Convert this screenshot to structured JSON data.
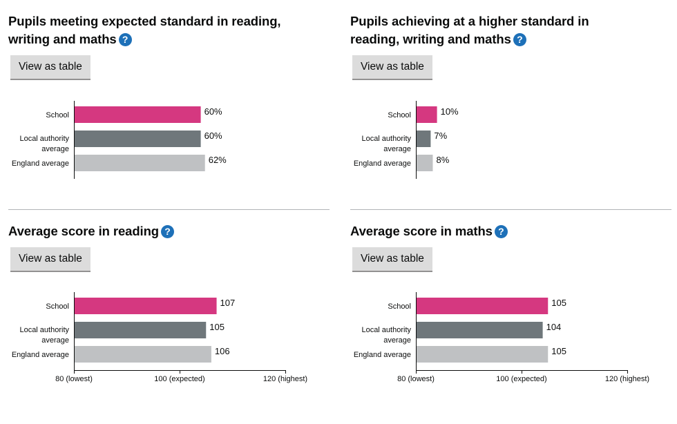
{
  "help_glyph": "?",
  "colors": {
    "school": "#d53880",
    "local_authority": "#6f777b",
    "england": "#bfc1c3",
    "help_icon": "#1d70b8",
    "axis": "#0b0c0c"
  },
  "panels": [
    {
      "title": "Pupils meeting expected standard in reading, writing and maths",
      "button_label": "View as table"
    },
    {
      "title": "Pupils achieving at a higher standard in reading, writing and maths",
      "button_label": "View as table"
    },
    {
      "title": "Average score in reading",
      "button_label": "View as table"
    },
    {
      "title": "Average score in maths",
      "button_label": "View as table"
    }
  ],
  "chart_data": [
    {
      "type": "bar",
      "orientation": "horizontal",
      "categories": [
        [
          "School"
        ],
        [
          "Local authority",
          "average"
        ],
        [
          "England average"
        ]
      ],
      "values": [
        60,
        60,
        62
      ],
      "value_labels": [
        "60%",
        "60%",
        "62%"
      ],
      "xlim": [
        0,
        100
      ],
      "ticks": []
    },
    {
      "type": "bar",
      "orientation": "horizontal",
      "categories": [
        [
          "School"
        ],
        [
          "Local authority",
          "average"
        ],
        [
          "England average"
        ]
      ],
      "values": [
        10,
        7,
        8
      ],
      "value_labels": [
        "10%",
        "7%",
        "8%"
      ],
      "xlim": [
        0,
        100
      ],
      "ticks": []
    },
    {
      "type": "bar",
      "orientation": "horizontal",
      "categories": [
        [
          "School"
        ],
        [
          "Local authority",
          "average"
        ],
        [
          "England average"
        ]
      ],
      "values": [
        107,
        105,
        106
      ],
      "value_labels": [
        "107",
        "105",
        "106"
      ],
      "xlim": [
        80,
        120
      ],
      "ticks": [
        {
          "value": 80,
          "label": "80 (lowest)"
        },
        {
          "value": 100,
          "label": "100 (expected)"
        },
        {
          "value": 120,
          "label": "120 (highest)"
        }
      ]
    },
    {
      "type": "bar",
      "orientation": "horizontal",
      "categories": [
        [
          "School"
        ],
        [
          "Local authority",
          "average"
        ],
        [
          "England average"
        ]
      ],
      "values": [
        105,
        104,
        105
      ],
      "value_labels": [
        "105",
        "104",
        "105"
      ],
      "xlim": [
        80,
        120
      ],
      "ticks": [
        {
          "value": 80,
          "label": "80 (lowest)"
        },
        {
          "value": 100,
          "label": "100 (expected)"
        },
        {
          "value": 120,
          "label": "120 (highest)"
        }
      ]
    }
  ]
}
